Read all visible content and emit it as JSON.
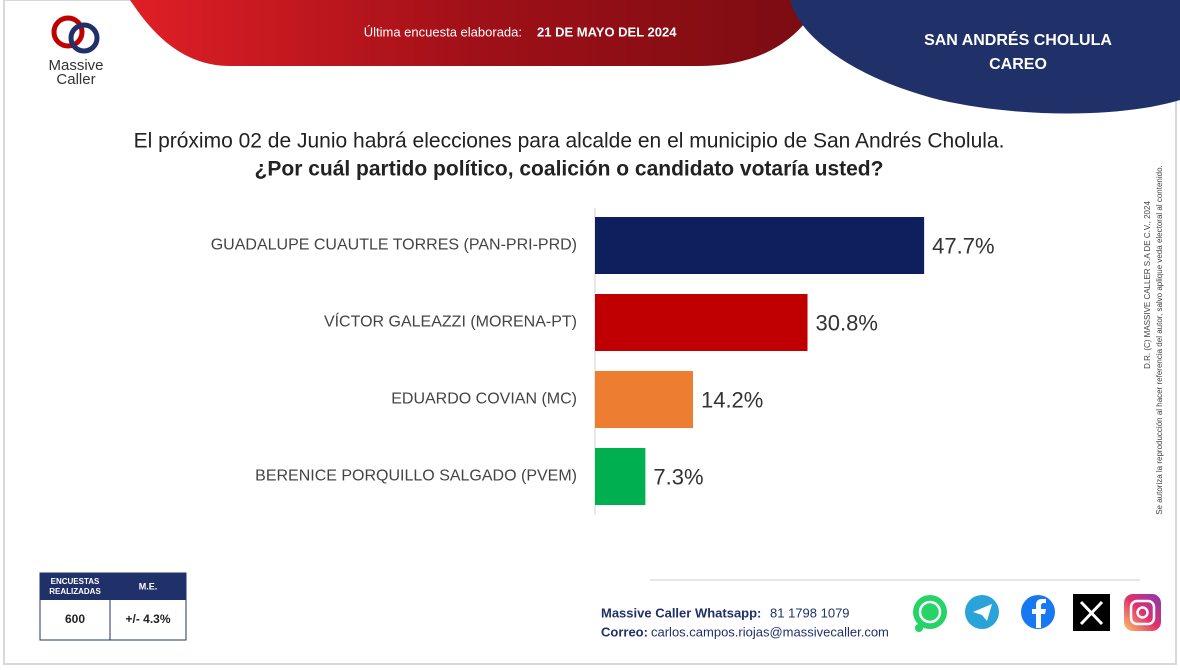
{
  "header": {
    "logo_top": "Massive",
    "logo_bottom": "Caller",
    "survey_label": "Última encuesta elaborada:",
    "survey_date": "21 DE MAYO DEL 2024",
    "place": "SAN ANDRÉS CHOLULA",
    "kind": "CAREO"
  },
  "chart_data": {
    "type": "bar",
    "orientation": "horizontal",
    "title": "El próximo 02 de Junio habrá elecciones para alcalde en el municipio de San Andrés Cholula.",
    "subtitle": "¿Por cuál partido político, coalición o candidato votaría usted?",
    "categories": [
      "GUADALUPE CUAUTLE TORRES (PAN-PRI-PRD)",
      "VÍCTOR GALEAZZI (MORENA-PT)",
      "EDUARDO COVIAN (MC)",
      "BERENICE PORQUILLO SALGADO (PVEM)"
    ],
    "values": [
      47.7,
      30.8,
      14.2,
      7.3
    ],
    "value_labels": [
      "47.7%",
      "30.8%",
      "14.2%",
      "7.3%"
    ],
    "colors": [
      "#0d1f5c",
      "#c00000",
      "#ed7d31",
      "#00b050"
    ]
  },
  "side_note": {
    "line1": "D.R. (C) MASSIVE CALLER S.A DE C.V., 2024",
    "line2": "Se autoriza la reproducción al hacer referencia del autor, salvo aplique veda electoral al contenido."
  },
  "table": {
    "header": [
      "ENCUESTAS REALIZADAS",
      "M.E."
    ],
    "row": [
      "600",
      "+/- 4.3%"
    ]
  },
  "footer": {
    "whatsapp_label": "Massive Caller Whatsapp:",
    "whatsapp": "81 1798 1079",
    "email_label": "Correo:",
    "email": "carlos.campos.riojas@massivecaller.com"
  }
}
